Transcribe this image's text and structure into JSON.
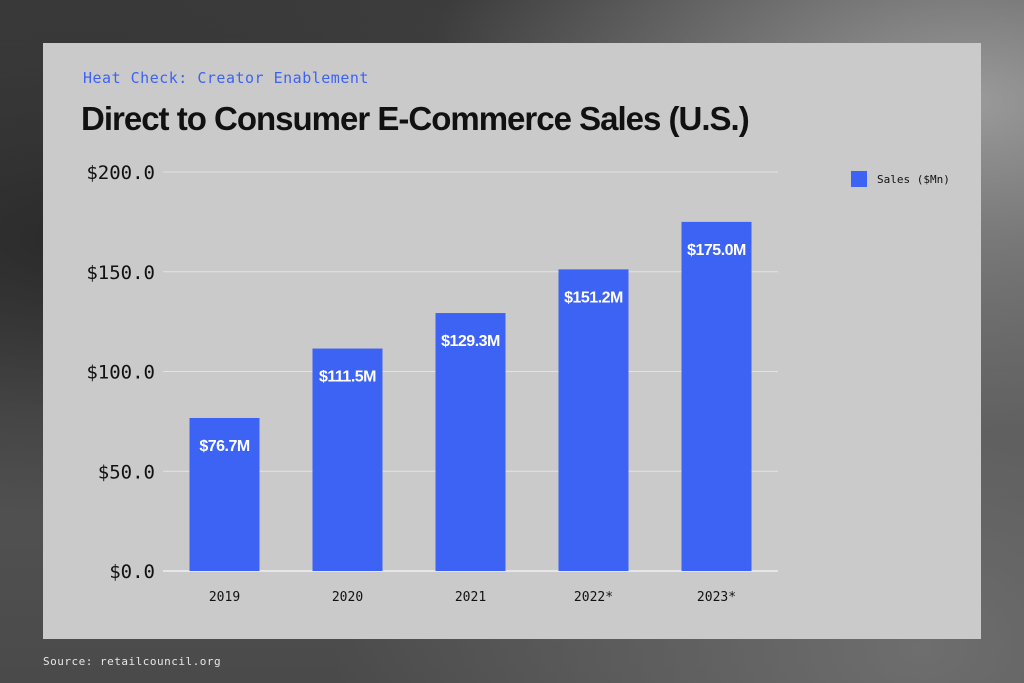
{
  "eyebrow": "Heat Check: Creator Enablement",
  "source": "Source: retailcouncil.org",
  "colors": {
    "bar": "#3d63f5",
    "card": "#cacaca",
    "grid": "#e3e3e3"
  },
  "chart_data": {
    "type": "bar",
    "title": "Direct to Consumer E-Commerce Sales (U.S.)",
    "categories": [
      "2019",
      "2020",
      "2021",
      "2022*",
      "2023*"
    ],
    "series": [
      {
        "name": "Sales ($Mn)",
        "values": [
          76.7,
          111.5,
          129.3,
          151.2,
          175.0
        ],
        "data_labels": [
          "$76.7M",
          "$111.5M",
          "$129.3M",
          "$151.2M",
          "$175.0M"
        ]
      }
    ],
    "y_ticks": [
      "$0.0",
      "$50.0",
      "$100.0",
      "$150.0",
      "$200.0"
    ],
    "ylim": [
      0,
      200
    ],
    "grid": true,
    "legend": "top-right"
  }
}
